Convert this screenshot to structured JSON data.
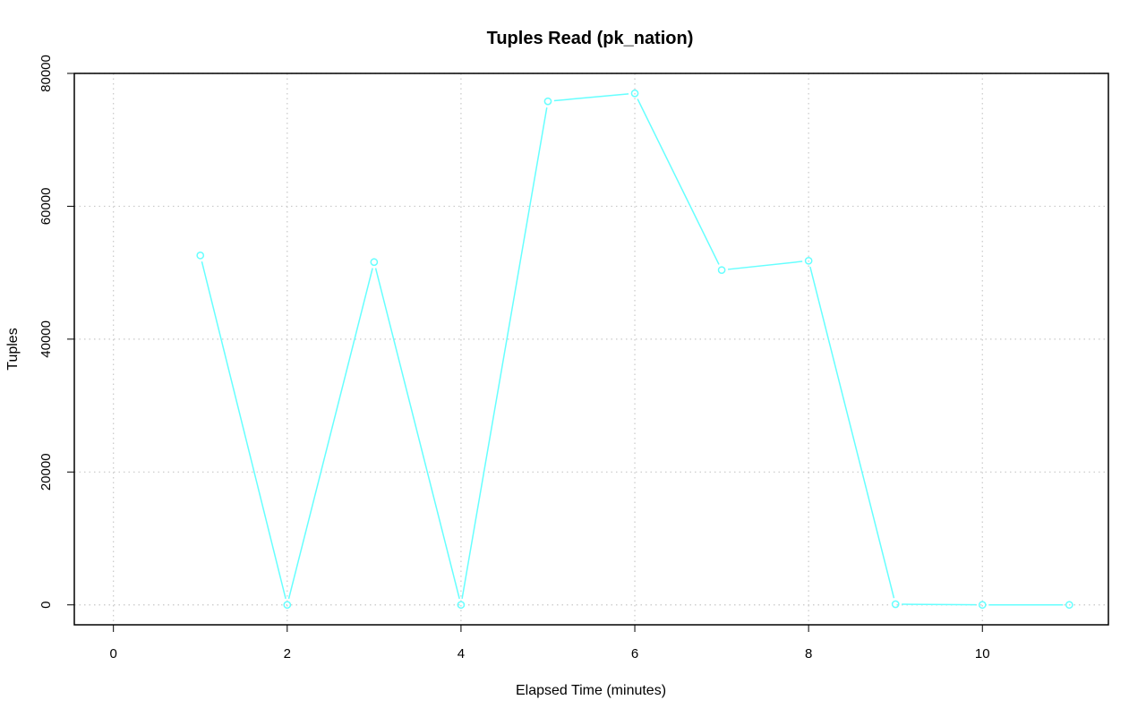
{
  "chart_data": {
    "type": "line",
    "title": "Tuples Read (pk_nation)",
    "xlabel": "Elapsed Time (minutes)",
    "ylabel": "Tuples",
    "xlim": [
      -0.45,
      11.45
    ],
    "ylim": [
      -3000,
      80000
    ],
    "x_ticks": [
      0,
      2,
      4,
      6,
      8,
      10
    ],
    "y_ticks": [
      0,
      20000,
      40000,
      60000,
      80000
    ],
    "x_tick_labels": [
      "0",
      "2",
      "4",
      "6",
      "8",
      "10"
    ],
    "y_tick_labels": [
      "0",
      "20000",
      "40000",
      "60000",
      "80000"
    ],
    "grid": true,
    "legend": "none",
    "series": [
      {
        "color": "#66ffff",
        "marker": "open-circle",
        "x": [
          1,
          2,
          3,
          4,
          5,
          6,
          7,
          8,
          9,
          10,
          11
        ],
        "y": [
          52600,
          0,
          51600,
          0,
          75800,
          77000,
          50400,
          51800,
          100,
          0,
          0
        ]
      }
    ]
  }
}
